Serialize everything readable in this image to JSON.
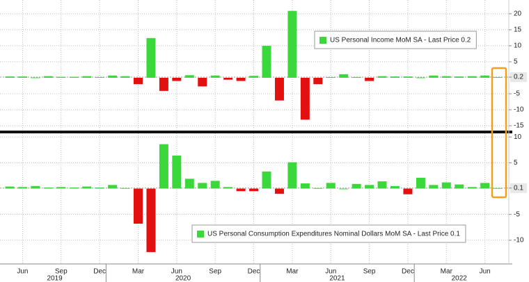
{
  "chart_data": [
    {
      "type": "bar",
      "name": "US Personal Income MoM SA - Last Price 0.2",
      "positive_color": "#3bd83b",
      "negative_color": "#e31010",
      "values": [
        0.4,
        0.4,
        0.1,
        0.5,
        0.3,
        0.3,
        0.5,
        0.2,
        0.7,
        0.5,
        -2.0,
        12.4,
        -4.1,
        -1.0,
        0.8,
        -2.7,
        0.7,
        -0.6,
        -1.0,
        0.6,
        10.0,
        -7.1,
        20.9,
        -13.1,
        -2.0,
        0.2,
        1.1,
        0.2,
        -1.0,
        0.5,
        0.4,
        0.4,
        0.1,
        0.7,
        0.5,
        0.4,
        0.5,
        0.7,
        0.2
      ],
      "ylim": [
        -16.5,
        24.3
      ],
      "yticks": [
        20,
        15,
        10,
        5,
        0.2,
        -5,
        -10,
        -15
      ],
      "grid": true
    },
    {
      "type": "bar",
      "name": "US Personal Consumption Expenditures Nominal Dollars MoM SA - Last Price 0.1",
      "positive_color": "#3bd83b",
      "negative_color": "#e31010",
      "values": [
        0.4,
        0.3,
        0.5,
        0.2,
        0.3,
        0.2,
        0.4,
        0.2,
        0.7,
        0.1,
        -6.8,
        -12.3,
        8.6,
        6.4,
        1.9,
        1.1,
        1.5,
        0.3,
        -0.5,
        -0.5,
        3.3,
        -1.0,
        5.1,
        1.0,
        0.1,
        1.1,
        0.0,
        0.9,
        0.7,
        1.4,
        0.5,
        -1.1,
        2.1,
        0.7,
        1.2,
        0.8,
        0.3,
        1.1,
        0.1
      ],
      "ylim": [
        -14.6,
        10.7
      ],
      "yticks": [
        10,
        5,
        0.1,
        -5,
        -10
      ],
      "grid": true,
      "categories": [
        null,
        "Jun",
        null,
        null,
        "Sep",
        null,
        null,
        "Dec",
        null,
        null,
        "Mar",
        null,
        null,
        "Jun",
        null,
        null,
        "Sep",
        null,
        null,
        "Dec",
        null,
        null,
        "Mar",
        null,
        null,
        "Jun",
        null,
        null,
        "Sep",
        null,
        null,
        "Dec",
        null,
        null,
        "Mar",
        null,
        null,
        "Jun",
        null
      ],
      "years": [
        "2019",
        "2020",
        "2021",
        "2022"
      ]
    }
  ]
}
